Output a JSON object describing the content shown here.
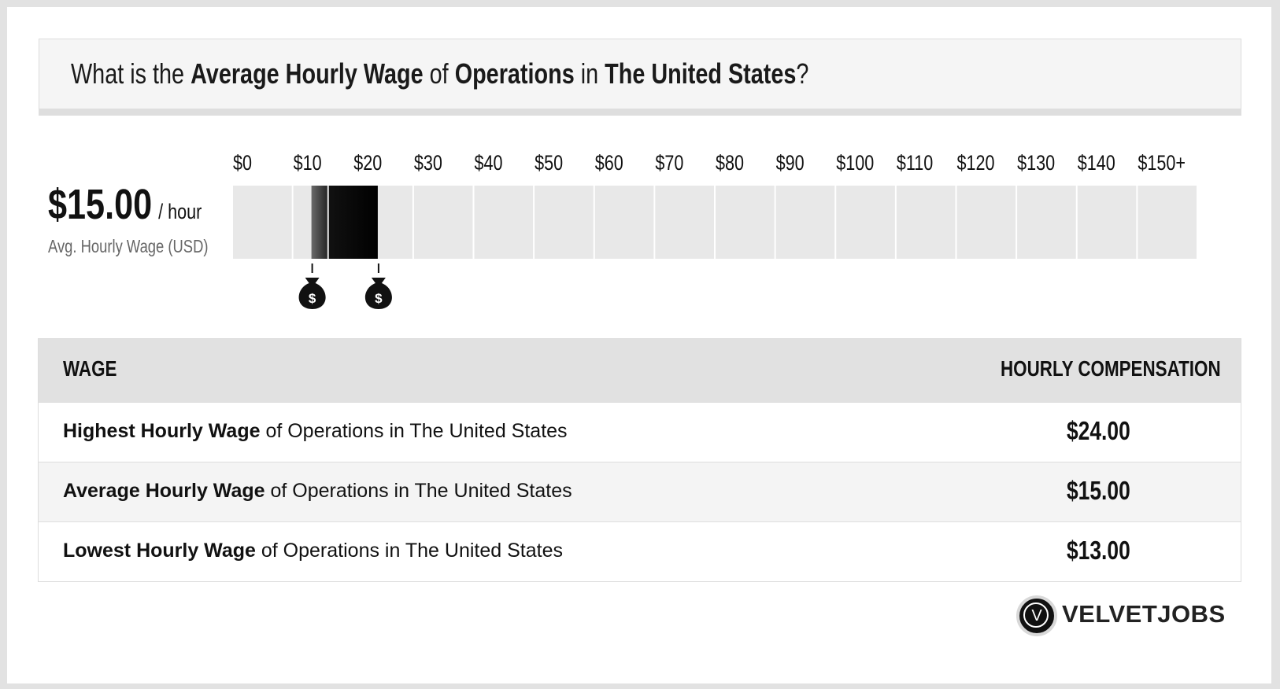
{
  "header": {
    "q_prefix": "What is the",
    "q_metric": "Average Hourly Wage",
    "q_of": "of",
    "q_job": "Operations",
    "q_in": "in",
    "q_location": "The United States",
    "q_suffix": "?"
  },
  "summary": {
    "amount": "$15.00",
    "unit": "/ hour",
    "label": "Avg. Hourly Wage (USD)"
  },
  "chart_data": {
    "type": "bar",
    "categories": [
      "$0",
      "$10",
      "$20",
      "$30",
      "$40",
      "$50",
      "$60",
      "$70",
      "$80",
      "$90",
      "$100",
      "$110",
      "$120",
      "$130",
      "$140",
      "$150+"
    ],
    "range_low": 13,
    "range_high": 24,
    "average": 15,
    "xlim": [
      0,
      150
    ],
    "colors": {
      "track": "#e8e8e8",
      "range_dark": "#111111",
      "range_light": "#6a6a6a",
      "marker": "#111111"
    }
  },
  "table": {
    "col_wage": "WAGE",
    "col_comp": "HOURLY COMPENSATION",
    "rows": [
      {
        "bold": "Highest Hourly Wage",
        "rest": " of Operations in The United States",
        "value": "$24.00"
      },
      {
        "bold": "Average Hourly Wage",
        "rest": " of Operations in The United States",
        "value": "$15.00"
      },
      {
        "bold": "Lowest Hourly Wage",
        "rest": " of Operations in The United States",
        "value": "$13.00"
      }
    ]
  },
  "logo": {
    "letter": "V",
    "text": "VELVETJOBS"
  },
  "icons": {
    "marker_top": "money-bag-icon",
    "marker_bottom": "money-bag-icon"
  }
}
